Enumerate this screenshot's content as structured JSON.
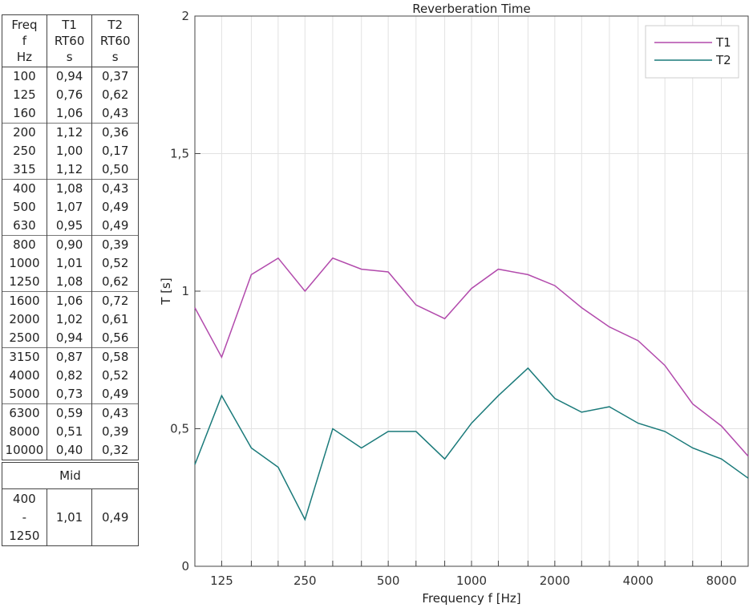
{
  "table": {
    "headers": [
      [
        "Freq",
        "f",
        "Hz"
      ],
      [
        "T1",
        "RT60",
        "s"
      ],
      [
        "T2",
        "RT60",
        "s"
      ]
    ],
    "rows": [
      [
        "100",
        "0,94",
        "0,37"
      ],
      [
        "125",
        "0,76",
        "0,62"
      ],
      [
        "160",
        "1,06",
        "0,43"
      ],
      [
        "200",
        "1,12",
        "0,36"
      ],
      [
        "250",
        "1,00",
        "0,17"
      ],
      [
        "315",
        "1,12",
        "0,50"
      ],
      [
        "400",
        "1,08",
        "0,43"
      ],
      [
        "500",
        "1,07",
        "0,49"
      ],
      [
        "630",
        "0,95",
        "0,49"
      ],
      [
        "800",
        "0,90",
        "0,39"
      ],
      [
        "1000",
        "1,01",
        "0,52"
      ],
      [
        "1250",
        "1,08",
        "0,62"
      ],
      [
        "1600",
        "1,06",
        "0,72"
      ],
      [
        "2000",
        "1,02",
        "0,61"
      ],
      [
        "2500",
        "0,94",
        "0,56"
      ],
      [
        "3150",
        "0,87",
        "0,58"
      ],
      [
        "4000",
        "0,82",
        "0,52"
      ],
      [
        "5000",
        "0,73",
        "0,49"
      ],
      [
        "6300",
        "0,59",
        "0,43"
      ],
      [
        "8000",
        "0,51",
        "0,39"
      ],
      [
        "10000",
        "0,40",
        "0,32"
      ]
    ]
  },
  "mid": {
    "title": "Mid",
    "freq_lines": [
      "400",
      "-",
      "1250"
    ],
    "t1": "1,01",
    "t2": "0,49"
  },
  "chart_data": {
    "type": "line",
    "title": "Reverberation Time",
    "xlabel": "Frequency f [Hz]",
    "ylabel": "T [s]",
    "x_scale": "log",
    "x": [
      100,
      125,
      160,
      200,
      250,
      315,
      400,
      500,
      630,
      800,
      1000,
      1250,
      1600,
      2000,
      2500,
      3150,
      4000,
      5000,
      6300,
      8000,
      10000
    ],
    "xlim": [
      100,
      10000
    ],
    "ylim": [
      0,
      2
    ],
    "x_tick_labels": [
      "125",
      "250",
      "500",
      "1000",
      "2000",
      "4000",
      "8000"
    ],
    "y_tick_labels": [
      "0",
      "0,5",
      "1",
      "1,5",
      "2"
    ],
    "grid": true,
    "legend_position": "top-right",
    "series": [
      {
        "name": "T1",
        "color": "#b24aac",
        "values": [
          0.94,
          0.76,
          1.06,
          1.12,
          1.0,
          1.12,
          1.08,
          1.07,
          0.95,
          0.9,
          1.01,
          1.08,
          1.06,
          1.02,
          0.94,
          0.87,
          0.82,
          0.73,
          0.59,
          0.51,
          0.4
        ]
      },
      {
        "name": "T2",
        "color": "#1a7a7a",
        "values": [
          0.37,
          0.62,
          0.43,
          0.36,
          0.17,
          0.5,
          0.43,
          0.49,
          0.49,
          0.39,
          0.52,
          0.62,
          0.72,
          0.61,
          0.56,
          0.58,
          0.52,
          0.49,
          0.43,
          0.39,
          0.32
        ]
      }
    ]
  }
}
